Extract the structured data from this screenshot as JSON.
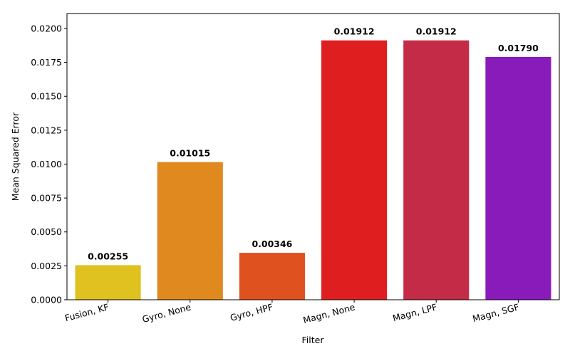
{
  "chart_data": {
    "type": "bar",
    "x_label": "Filter",
    "y_label": "Mean Squared Error",
    "categories": [
      "Fusion, KF",
      "Gyro, None",
      "Gyro, HPF",
      "Magn, None",
      "Magn, LPF",
      "Magn, SGF"
    ],
    "values": [
      0.00255,
      0.01015,
      0.00346,
      0.01912,
      0.01912,
      0.0179
    ],
    "value_labels": [
      "0.00255",
      "0.01015",
      "0.00346",
      "0.01912",
      "0.01912",
      "0.01790"
    ],
    "colors": [
      "#dfc11f",
      "#df891f",
      "#df521f",
      "#df1f1f",
      "#c42b47",
      "#8a1bbb"
    ],
    "ylim": [
      0,
      0.0211
    ],
    "yticks": [
      {
        "value": 0,
        "label": "0.0000"
      },
      {
        "value": 0.0025,
        "label": "0.0025"
      },
      {
        "value": 0.005,
        "label": "0.0050"
      },
      {
        "value": 0.0075,
        "label": "0.0075"
      },
      {
        "value": 0.01,
        "label": "0.0100"
      },
      {
        "value": 0.0125,
        "label": "0.0125"
      },
      {
        "value": 0.015,
        "label": "0.0150"
      },
      {
        "value": 0.0175,
        "label": "0.0175"
      },
      {
        "value": 0.02,
        "label": "0.0200"
      }
    ]
  }
}
